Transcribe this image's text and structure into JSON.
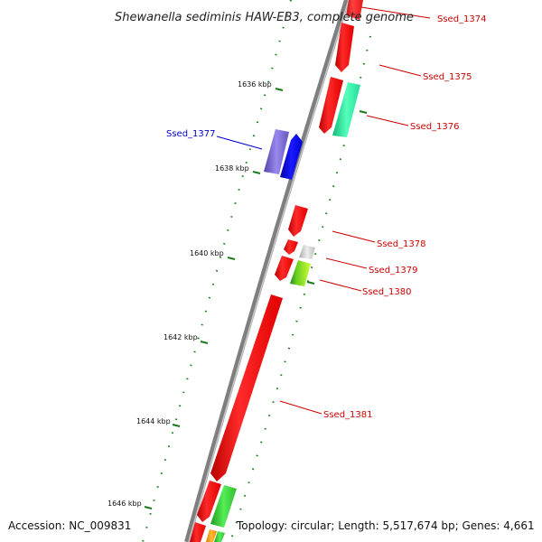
{
  "title": "Shewanella sediminis HAW-EB3, complete genome",
  "footer": {
    "accession": "Accession: NC_009831",
    "topology": "Topology: circular; Length: 5,517,674 bp; Genes: 4,661"
  },
  "ticks": [
    "1636 kbp",
    "1638 kbp",
    "1640 kbp",
    "1642 kbp",
    "1644 kbp",
    "1646 kbp"
  ],
  "genes": [
    {
      "label": "Ssed_1374",
      "color": "#cc0000"
    },
    {
      "label": "Ssed_1375",
      "color": "#cc0000"
    },
    {
      "label": "Ssed_1376",
      "color": "#cc0000"
    },
    {
      "label": "Ssed_1377",
      "color": "#0000cc"
    },
    {
      "label": "Ssed_1378",
      "color": "#cc0000"
    },
    {
      "label": "Ssed_1379",
      "color": "#cc0000"
    },
    {
      "label": "Ssed_1380",
      "color": "#cc0000"
    },
    {
      "label": "Ssed_1381",
      "color": "#cc0000"
    }
  ],
  "colors": {
    "backbone": "#888888",
    "tick": "#1a7a1a",
    "forward_gene": "#ff0000",
    "blue_gene": "#0000ee",
    "purple_gene": "#7766cc",
    "teal_gene": "#22ee99",
    "green_gene": "#33cc33",
    "lime_gene": "#aaee22",
    "grey_gene": "#c8c8c8",
    "orange_gene": "#ff9900"
  }
}
